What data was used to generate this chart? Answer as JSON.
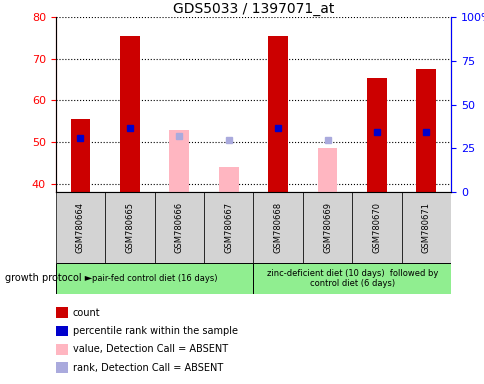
{
  "title": "GDS5033 / 1397071_at",
  "samples": [
    "GSM780664",
    "GSM780665",
    "GSM780666",
    "GSM780667",
    "GSM780668",
    "GSM780669",
    "GSM780670",
    "GSM780671"
  ],
  "ylim_left": [
    38,
    80
  ],
  "ylim_right": [
    0,
    100
  ],
  "yticks_left": [
    40,
    50,
    60,
    70,
    80
  ],
  "yticks_right": [
    0,
    25,
    50,
    75,
    100
  ],
  "red_bars": {
    "GSM780664": 55.5,
    "GSM780665": 75.5,
    "GSM780666": null,
    "GSM780667": null,
    "GSM780668": 75.5,
    "GSM780669": null,
    "GSM780670": 65.5,
    "GSM780671": 67.5
  },
  "pink_bars": {
    "GSM780664": null,
    "GSM780665": null,
    "GSM780666": 53.0,
    "GSM780667": 44.0,
    "GSM780668": null,
    "GSM780669": 48.5,
    "GSM780670": null,
    "GSM780671": null
  },
  "blue_squares": {
    "GSM780664": 51.0,
    "GSM780665": 53.5,
    "GSM780666": null,
    "GSM780667": null,
    "GSM780668": 53.5,
    "GSM780669": null,
    "GSM780670": 52.5,
    "GSM780671": 52.5
  },
  "light_blue_squares": {
    "GSM780664": null,
    "GSM780665": null,
    "GSM780666": 51.5,
    "GSM780667": 50.5,
    "GSM780668": null,
    "GSM780669": 50.5,
    "GSM780670": null,
    "GSM780671": null
  },
  "bar_bottom": 38,
  "bar_width": 0.4,
  "red_color": "#CC0000",
  "pink_color": "#FFB6C1",
  "blue_color": "#0000CC",
  "light_blue_color": "#AAAADD",
  "legend_items": [
    {
      "color": "#CC0000",
      "label": "count"
    },
    {
      "color": "#0000CC",
      "label": "percentile rank within the sample"
    },
    {
      "color": "#FFB6C1",
      "label": "value, Detection Call = ABSENT"
    },
    {
      "color": "#AAAADD",
      "label": "rank, Detection Call = ABSENT"
    }
  ],
  "growth_protocol_label": "growth protocol",
  "sample_box_color": "#D3D3D3",
  "group_box_color": "#90EE90",
  "group_configs": [
    {
      "indices": [
        0,
        1,
        2,
        3
      ],
      "label": "pair-fed control diet (16 days)"
    },
    {
      "indices": [
        4,
        5,
        6,
        7
      ],
      "label": "zinc-deficient diet (10 days)  followed by\ncontrol diet (6 days)"
    }
  ]
}
